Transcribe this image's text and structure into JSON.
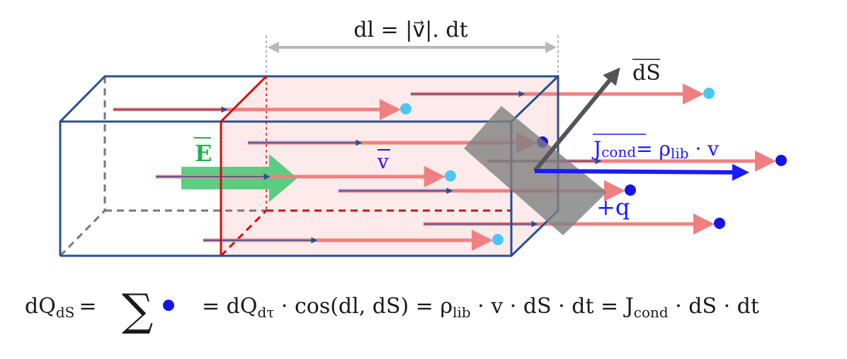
{
  "labels": {
    "dl_dimension": "dl = |v⃗|. dt",
    "dS": "dS",
    "E": "E",
    "v": "v",
    "q": "+q",
    "J_main": "J",
    "J_sub": "cond",
    "J_eq": "= ρ",
    "J_eq_sub": "lib",
    "J_eq_tail": " · v"
  },
  "formula": {
    "lhs": "dQ",
    "lhs_sub": "dS",
    "eq1": "=",
    "sum": "∑",
    "p1": "= dQ",
    "p1_sub": "dτ",
    "p2": " · cos(dl, dS) = ρ",
    "p2_sub": "lib",
    "p3": " · v · dS · dt = J",
    "p3_sub": "cond",
    "p4": " · dS · dt"
  },
  "colors": {
    "box": "#2a4f8f",
    "red_section": "#d01010",
    "pink_fill": "#fde6e6",
    "particle_track": "#f08080",
    "charge_dark": "#1515e8",
    "charge_light": "#4cc8f0",
    "field": "#4cc878",
    "current": "#1a1aff",
    "surface": "#808080"
  }
}
